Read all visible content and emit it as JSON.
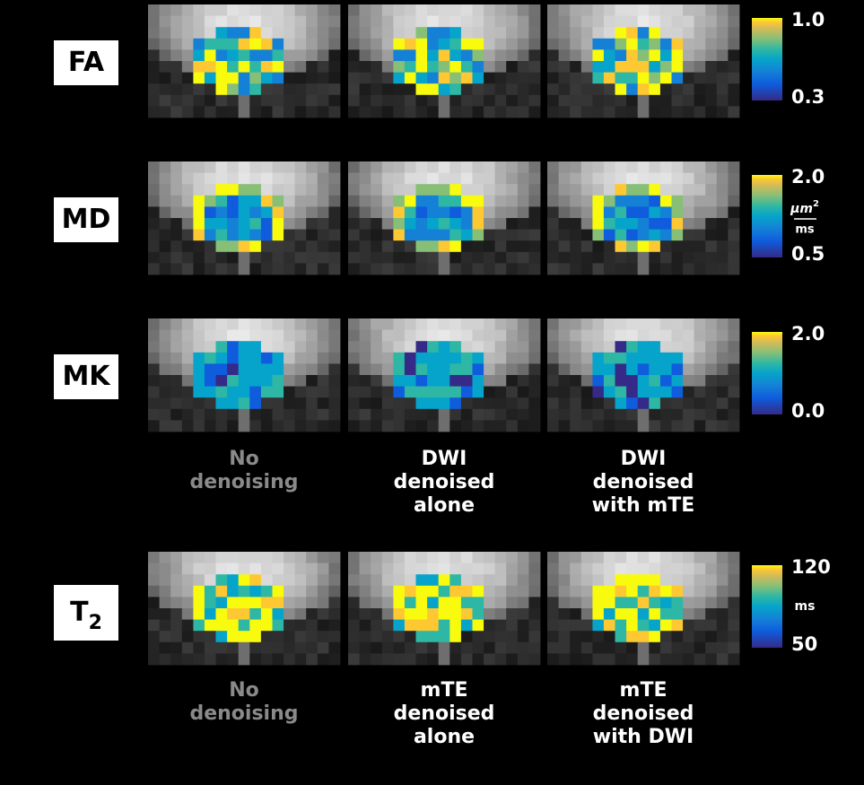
{
  "rows": [
    {
      "label": "FA",
      "colorbar": {
        "max": "1.0",
        "min": "0.3"
      }
    },
    {
      "label": "MD",
      "colorbar": {
        "max": "2.0",
        "min": "0.5",
        "units": {
          "numerator": "μm",
          "numerator_sup": "2",
          "denominator": "ms"
        }
      }
    },
    {
      "label": "MK",
      "colorbar": {
        "max": "2.0",
        "min": "0.0"
      }
    },
    {
      "label": "T",
      "label_sub": "2",
      "colorbar": {
        "max": "120",
        "min": "50",
        "units": {
          "text": "ms"
        }
      }
    }
  ],
  "captions_diffusion": [
    [
      "No",
      "denoising"
    ],
    [
      "DWI",
      "denoised",
      "alone"
    ],
    [
      "DWI",
      "denoised",
      "with mTE"
    ]
  ],
  "captions_t2": [
    [
      "No",
      "denoising"
    ],
    [
      "mTE",
      "denoised",
      "alone"
    ],
    [
      "mTE",
      "denoised",
      "with DWI"
    ]
  ]
}
